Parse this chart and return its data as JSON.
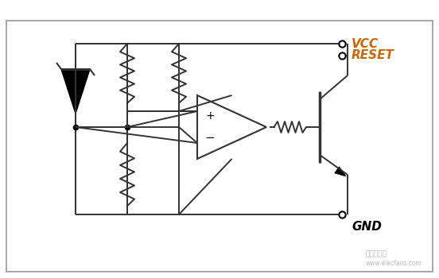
{
  "bg_color": "#ffffff",
  "border_color": "#888888",
  "line_color": "#333333",
  "vcc_color": "#cc6600",
  "reset_color": "#cc6600",
  "gnd_color": "#000000",
  "label_vcc": "VCC",
  "label_reset": "RESET",
  "label_gnd": "GND",
  "opamp_plus": "+",
  "opamp_minus": "−"
}
